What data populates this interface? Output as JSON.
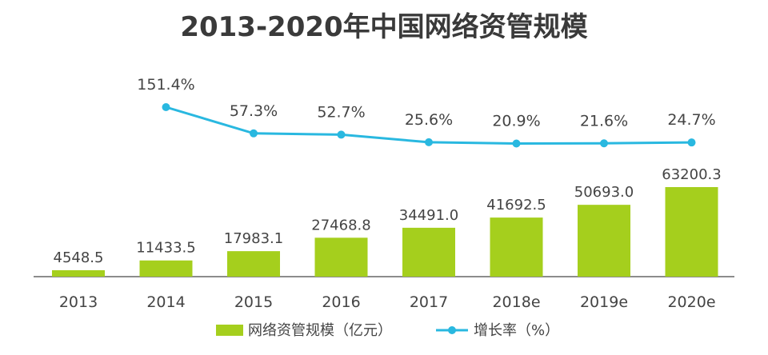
{
  "chart_data": {
    "type": "bar",
    "title": "2013-2020年中国网络资管规模",
    "categories": [
      "2013",
      "2014",
      "2015",
      "2016",
      "2017",
      "2018e",
      "2019e",
      "2020e"
    ],
    "series": [
      {
        "name": "网络资管规模（亿元）",
        "type": "bar",
        "values": [
          4548.5,
          11433.5,
          17983.1,
          27468.8,
          34491.0,
          41692.5,
          50693.0,
          63200.3
        ],
        "labels": [
          "4548.5",
          "11433.5",
          "17983.1",
          "27468.8",
          "34491.0",
          "41692.5",
          "50693.0",
          "63200.3"
        ]
      },
      {
        "name": "增长率（%）",
        "type": "line",
        "values": [
          null,
          151.4,
          57.3,
          52.7,
          25.6,
          20.9,
          21.6,
          24.7
        ],
        "labels": [
          null,
          "151.4%",
          "57.3%",
          "52.7%",
          "25.6%",
          "20.9%",
          "21.6%",
          "24.7%"
        ]
      }
    ],
    "legend_position": "bottom-center",
    "grid": false,
    "colors": {
      "bar": "#a5cf1d",
      "line": "#29b8e0",
      "text": "#444444",
      "title": "#3a3a3a",
      "axis": "#666666"
    }
  }
}
